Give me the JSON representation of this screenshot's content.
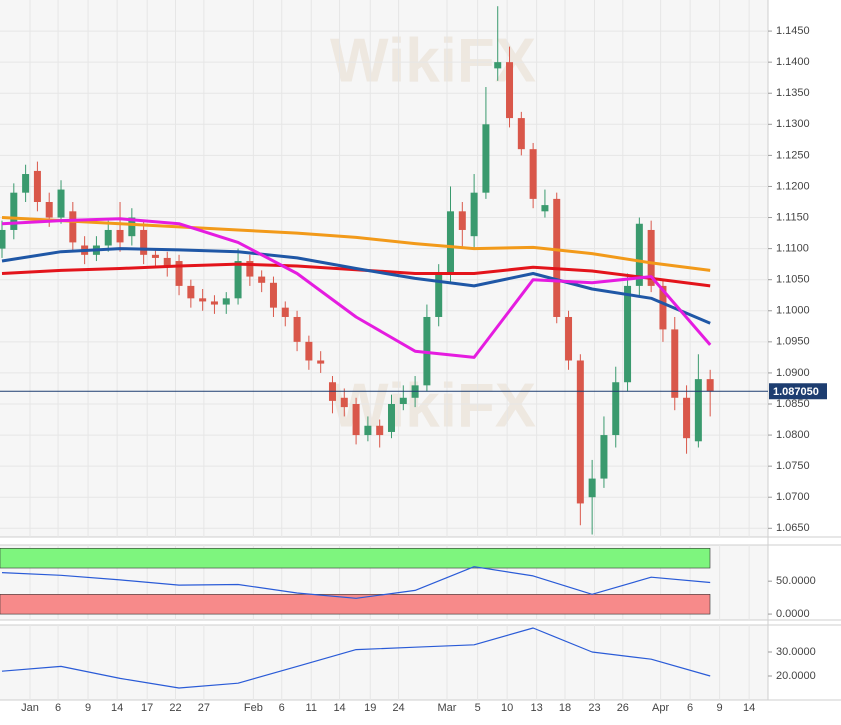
{
  "chart_data": [
    {
      "type": "candlestick",
      "watermark": "WikiFX",
      "x": [
        0,
        1,
        2,
        3,
        4,
        5,
        6,
        7,
        8,
        9,
        10,
        11,
        12,
        13,
        14,
        15,
        16,
        17,
        18,
        19,
        20,
        21,
        22,
        23,
        24,
        25,
        26,
        27,
        28,
        29,
        30,
        31,
        32,
        33,
        34,
        35,
        36,
        37,
        38,
        39,
        40,
        41,
        42,
        43,
        44,
        45,
        46,
        47,
        48,
        49,
        50,
        51,
        52,
        53,
        54,
        55,
        56,
        57,
        58,
        59,
        60
      ],
      "open": [
        1.11,
        1.113,
        1.119,
        1.1225,
        1.1175,
        1.115,
        1.116,
        1.1105,
        1.109,
        1.1105,
        1.113,
        1.112,
        1.113,
        1.109,
        1.1085,
        1.108,
        1.104,
        1.102,
        1.1015,
        1.101,
        1.102,
        1.108,
        1.1055,
        1.1045,
        1.1005,
        1.099,
        1.095,
        1.092,
        1.0885,
        1.086,
        1.085,
        1.08,
        1.0815,
        1.0805,
        1.085,
        1.086,
        1.088,
        1.099,
        1.106,
        1.116,
        1.112,
        1.119,
        1.139,
        1.14,
        1.131,
        1.126,
        1.116,
        1.118,
        1.099,
        1.092,
        1.07,
        1.073,
        1.08,
        1.0885,
        1.104,
        1.113,
        1.104,
        1.097,
        1.086,
        1.079,
        1.089
      ],
      "high": [
        1.1145,
        1.1205,
        1.1235,
        1.124,
        1.119,
        1.121,
        1.1175,
        1.112,
        1.112,
        1.1145,
        1.1175,
        1.1165,
        1.1145,
        1.11,
        1.1095,
        1.109,
        1.105,
        1.1035,
        1.1025,
        1.103,
        1.11,
        1.109,
        1.1065,
        1.1055,
        1.1015,
        1.1,
        1.096,
        1.0935,
        1.0895,
        1.0875,
        1.086,
        1.083,
        1.0825,
        1.0865,
        1.088,
        1.0895,
        1.101,
        1.1075,
        1.12,
        1.1175,
        1.122,
        1.136,
        1.149,
        1.1425,
        1.132,
        1.127,
        1.1195,
        1.119,
        1.1,
        1.093,
        1.076,
        1.083,
        1.091,
        1.106,
        1.115,
        1.1145,
        1.105,
        1.099,
        1.088,
        1.093,
        1.0905
      ],
      "low": [
        1.1085,
        1.1115,
        1.1175,
        1.116,
        1.1135,
        1.114,
        1.1095,
        1.1075,
        1.108,
        1.1095,
        1.1095,
        1.1105,
        1.1075,
        1.107,
        1.1055,
        1.1025,
        1.1005,
        1.1,
        1.0995,
        1.0995,
        1.101,
        1.104,
        1.103,
        1.099,
        1.0975,
        1.0935,
        1.0905,
        1.09,
        1.0835,
        1.083,
        1.0785,
        1.079,
        1.078,
        1.0795,
        1.084,
        1.0845,
        1.087,
        1.0975,
        1.1045,
        1.11,
        1.11,
        1.118,
        1.137,
        1.1295,
        1.125,
        1.1165,
        1.115,
        1.098,
        1.0905,
        1.0655,
        1.064,
        1.0715,
        1.078,
        1.087,
        1.1025,
        1.103,
        1.095,
        1.084,
        1.077,
        1.078,
        1.083
      ],
      "close": [
        1.113,
        1.119,
        1.122,
        1.1175,
        1.115,
        1.1195,
        1.111,
        1.109,
        1.1105,
        1.113,
        1.111,
        1.115,
        1.109,
        1.1085,
        1.107,
        1.104,
        1.102,
        1.1015,
        1.101,
        1.102,
        1.108,
        1.1055,
        1.1045,
        1.1005,
        1.099,
        1.095,
        1.092,
        1.0915,
        1.0855,
        1.0845,
        1.08,
        1.0815,
        1.08,
        1.085,
        1.086,
        1.088,
        1.099,
        1.106,
        1.116,
        1.113,
        1.119,
        1.13,
        1.14,
        1.131,
        1.126,
        1.118,
        1.117,
        1.099,
        1.092,
        1.069,
        1.073,
        1.08,
        1.0885,
        1.104,
        1.114,
        1.104,
        1.097,
        1.086,
        1.0795,
        1.089,
        1.087
      ],
      "up_color": "#3a9a6e",
      "down_color": "#d9574a",
      "series": [
        {
          "color": "#f29a1a",
          "x": [
            0,
            5,
            10,
            15,
            20,
            25,
            30,
            35,
            40,
            45,
            50,
            55,
            60
          ],
          "values": [
            1.115,
            1.1145,
            1.114,
            1.1135,
            1.113,
            1.1125,
            1.1118,
            1.1108,
            1.11,
            1.1102,
            1.1092,
            1.1077,
            1.1065
          ]
        },
        {
          "color": "#e3141b",
          "x": [
            0,
            5,
            10,
            15,
            20,
            25,
            30,
            35,
            40,
            45,
            50,
            55,
            60
          ],
          "values": [
            1.106,
            1.1065,
            1.1068,
            1.1072,
            1.1075,
            1.1072,
            1.1066,
            1.106,
            1.106,
            1.107,
            1.1064,
            1.1052,
            1.104
          ]
        },
        {
          "color": "#1f57a6",
          "x": [
            0,
            5,
            10,
            15,
            20,
            25,
            30,
            35,
            40,
            45,
            50,
            55,
            60
          ],
          "values": [
            1.108,
            1.1095,
            1.11,
            1.1098,
            1.1095,
            1.1085,
            1.1068,
            1.1052,
            1.104,
            1.106,
            1.1035,
            1.102,
            1.098
          ]
        },
        {
          "color": "#e51ce0",
          "x": [
            0,
            5,
            10,
            15,
            20,
            25,
            30,
            35,
            40,
            45,
            50,
            55,
            60
          ],
          "values": [
            1.114,
            1.1145,
            1.1148,
            1.114,
            1.111,
            1.106,
            1.099,
            1.0935,
            1.0925,
            1.105,
            1.1045,
            1.1055,
            1.0945
          ]
        }
      ],
      "current_price": {
        "value": 1.08705,
        "label": "1.087050"
      },
      "xlim": [
        -0.17,
        64.9
      ],
      "ylim": [
        1.0636,
        1.15
      ],
      "yticks": [
        {
          "value": 1.065,
          "label": "1.0650"
        },
        {
          "value": 1.07,
          "label": "1.0700"
        },
        {
          "value": 1.075,
          "label": "1.0750"
        },
        {
          "value": 1.08,
          "label": "1.0800"
        },
        {
          "value": 1.085,
          "label": "1.0850"
        },
        {
          "value": 1.09,
          "label": "1.0900"
        },
        {
          "value": 1.095,
          "label": "1.0950"
        },
        {
          "value": 1.1,
          "label": "1.1000"
        },
        {
          "value": 1.105,
          "label": "1.1050"
        },
        {
          "value": 1.11,
          "label": "1.1100"
        },
        {
          "value": 1.115,
          "label": "1.1150"
        },
        {
          "value": 1.12,
          "label": "1.1200"
        },
        {
          "value": 1.125,
          "label": "1.1250"
        },
        {
          "value": 1.13,
          "label": "1.1300"
        },
        {
          "value": 1.135,
          "label": "1.1350"
        },
        {
          "value": 1.14,
          "label": "1.1400"
        },
        {
          "value": 1.145,
          "label": "1.1450"
        }
      ],
      "xticks": [
        {
          "value": 2.37,
          "label": "Jan"
        },
        {
          "value": 4.75,
          "label": "6"
        },
        {
          "value": 7.29,
          "label": "9"
        },
        {
          "value": 9.75,
          "label": "14"
        },
        {
          "value": 12.3,
          "label": "17"
        },
        {
          "value": 14.7,
          "label": "22"
        },
        {
          "value": 17.1,
          "label": "27"
        },
        {
          "value": 21.3,
          "label": "Feb"
        },
        {
          "value": 23.7,
          "label": "6"
        },
        {
          "value": 26.2,
          "label": "11"
        },
        {
          "value": 28.6,
          "label": "14"
        },
        {
          "value": 31.2,
          "label": "19"
        },
        {
          "value": 33.6,
          "label": "24"
        },
        {
          "value": 37.7,
          "label": "Mar"
        },
        {
          "value": 40.3,
          "label": "5"
        },
        {
          "value": 42.8,
          "label": "10"
        },
        {
          "value": 45.3,
          "label": "13"
        },
        {
          "value": 47.7,
          "label": "18"
        },
        {
          "value": 50.2,
          "label": "23"
        },
        {
          "value": 52.6,
          "label": "26"
        },
        {
          "value": 55.8,
          "label": "Apr"
        },
        {
          "value": 58.3,
          "label": "6"
        },
        {
          "value": 60.8,
          "label": "9"
        },
        {
          "value": 63.3,
          "label": "14"
        }
      ],
      "grid": true
    },
    {
      "type": "line",
      "bands": [
        {
          "range": [
            70,
            100
          ],
          "color": "#7ef57e"
        },
        {
          "range": [
            0,
            30
          ],
          "color": "#f78a8a"
        }
      ],
      "series": [
        {
          "color": "#2a5bd7",
          "x": [
            0,
            5,
            10,
            15,
            20,
            25,
            30,
            35,
            40,
            45,
            50,
            55,
            60
          ],
          "values": [
            63,
            59,
            52,
            44,
            45,
            32,
            24,
            36,
            72,
            58,
            30,
            56,
            48
          ]
        }
      ],
      "xlim": [
        -0.17,
        64.9
      ],
      "ylim": [
        -9,
        105
      ],
      "yticks": [
        {
          "value": 0,
          "label": "0.0000"
        },
        {
          "value": 50,
          "label": "50.0000"
        }
      ]
    },
    {
      "type": "line",
      "series": [
        {
          "color": "#2a5bd7",
          "x": [
            0,
            5,
            10,
            15,
            20,
            25,
            30,
            35,
            40,
            45,
            50,
            55,
            60
          ],
          "values": [
            22,
            24,
            19,
            15,
            17,
            24,
            31,
            32,
            33,
            40,
            30,
            27,
            20
          ]
        }
      ],
      "xlim": [
        -0.17,
        64.9
      ],
      "ylim": [
        10,
        41.25
      ],
      "yticks": [
        {
          "value": 20,
          "label": "20.0000"
        },
        {
          "value": 30,
          "label": "30.0000"
        }
      ]
    }
  ]
}
